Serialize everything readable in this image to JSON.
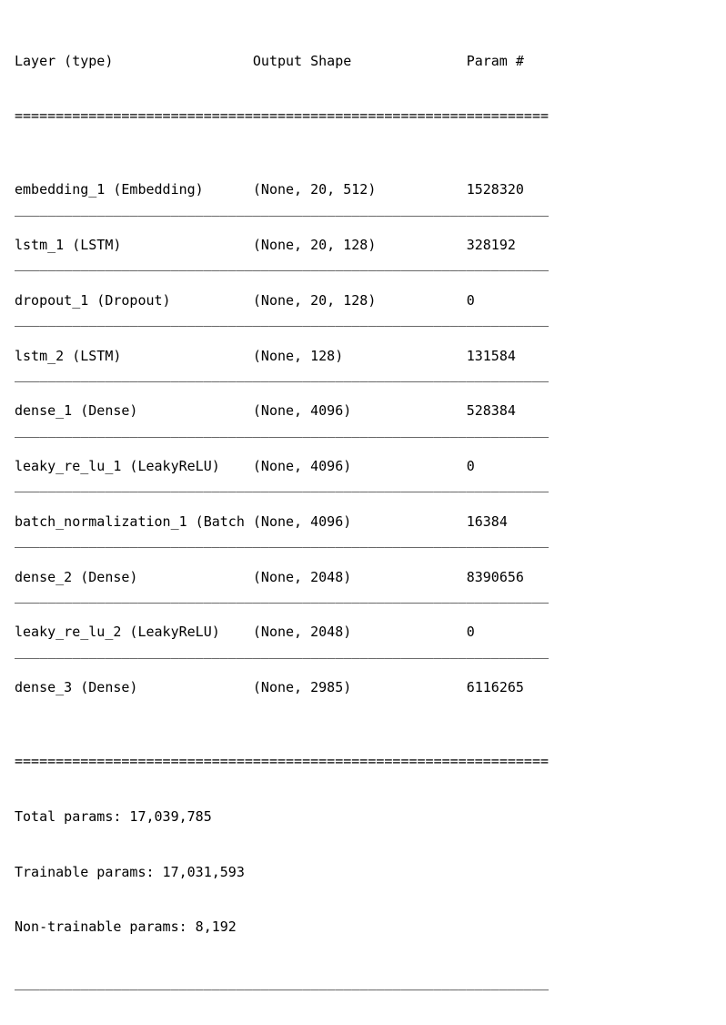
{
  "table": {
    "type": "table",
    "font_family": "monospace",
    "font_size_pt": 11,
    "text_color": "#000000",
    "background_color": "#ffffff",
    "col_widths_ch": [
      29,
      26,
      10
    ],
    "double_rule_char": "=",
    "single_rule_char": "_",
    "rule_width_ch": 65,
    "headers": {
      "layer": "Layer (type)",
      "output_shape": "Output Shape",
      "param": "Param #"
    },
    "rows": [
      {
        "layer": "embedding_1 (Embedding)",
        "output_shape": "(None, 20, 512)",
        "param": "1528320"
      },
      {
        "layer": "lstm_1 (LSTM)",
        "output_shape": "(None, 20, 128)",
        "param": "328192"
      },
      {
        "layer": "dropout_1 (Dropout)",
        "output_shape": "(None, 20, 128)",
        "param": "0"
      },
      {
        "layer": "lstm_2 (LSTM)",
        "output_shape": "(None, 128)",
        "param": "131584"
      },
      {
        "layer": "dense_1 (Dense)",
        "output_shape": "(None, 4096)",
        "param": "528384"
      },
      {
        "layer": "leaky_re_lu_1 (LeakyReLU)",
        "output_shape": "(None, 4096)",
        "param": "0"
      },
      {
        "layer": "batch_normalization_1 (Batch",
        "output_shape": "(None, 4096)",
        "param": "16384"
      },
      {
        "layer": "dense_2 (Dense)",
        "output_shape": "(None, 2048)",
        "param": "8390656"
      },
      {
        "layer": "leaky_re_lu_2 (LeakyReLU)",
        "output_shape": "(None, 2048)",
        "param": "0"
      },
      {
        "layer": "dense_3 (Dense)",
        "output_shape": "(None, 2985)",
        "param": "6116265"
      }
    ],
    "footer": {
      "total": "Total params: 17,039,785",
      "trainable": "Trainable params: 17,031,593",
      "non_trainable": "Non-trainable params: 8,192"
    }
  }
}
